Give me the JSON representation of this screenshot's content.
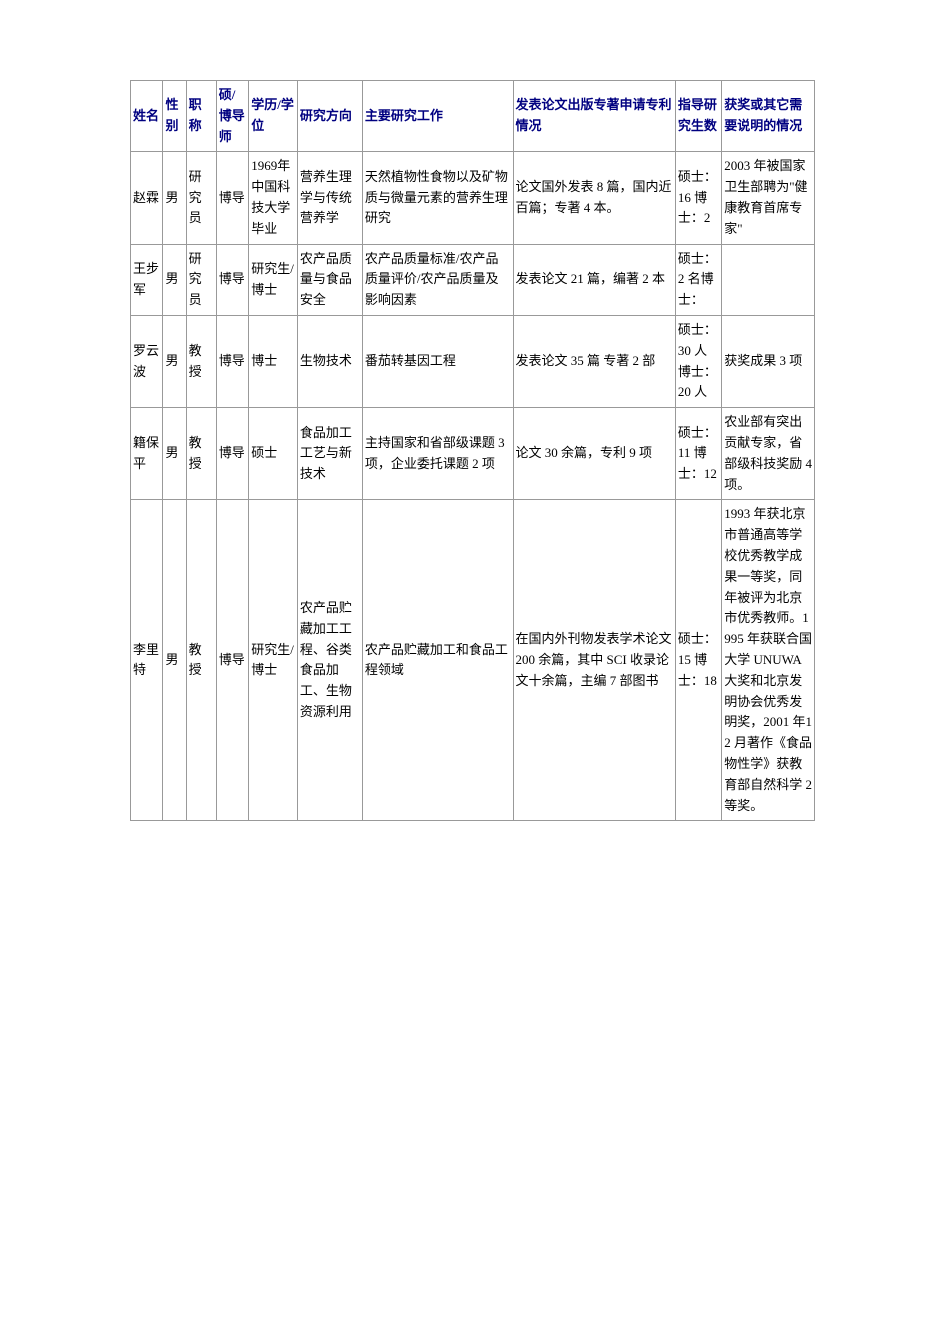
{
  "table": {
    "columns": [
      {
        "key": "name",
        "label": "姓名"
      },
      {
        "key": "gender",
        "label": "性别"
      },
      {
        "key": "title",
        "label": "职称"
      },
      {
        "key": "advisor",
        "label": "硕/博导师"
      },
      {
        "key": "education",
        "label": "学历/学位"
      },
      {
        "key": "direction",
        "label": "研究方向"
      },
      {
        "key": "work",
        "label": "主要研究工作"
      },
      {
        "key": "publications",
        "label": "发表论文出版专著申请专利情况"
      },
      {
        "key": "students",
        "label": "指导研究生数"
      },
      {
        "key": "awards",
        "label": "获奖或其它需要说明的情况"
      }
    ],
    "rows": [
      {
        "name": "赵霖",
        "gender": "男",
        "title": "研究员",
        "advisor": "博导",
        "education": "1969年中国科技大学毕业",
        "direction": "营养生理学与传统营养学",
        "work": "天然植物性食物以及矿物质与微量元素的营养生理研究",
        "publications": "论文国外发表 8 篇，国内近百篇；专著 4 本。",
        "students": "硕士：16 博士：2",
        "awards": "2003 年被国家卫生部聘为\"健康教育首席专家\""
      },
      {
        "name": "王步军",
        "gender": "男",
        "title": "研究员",
        "advisor": "博导",
        "education": "研究生/博士",
        "direction": "农产品质量与食品安全",
        "work": "农产品质量标准/农产品质量评价/农产品质量及影响因素",
        "publications": "发表论文 21 篇，编著 2 本",
        "students": "硕士：2 名博士：",
        "awards": ""
      },
      {
        "name": "罗云波",
        "gender": "男",
        "title": "教授",
        "advisor": "博导",
        "education": "博士",
        "direction": "生物技术",
        "work": "番茄转基因工程",
        "publications": "发表论文 35 篇 专著 2 部",
        "students": "硕士：30 人博士：20 人",
        "awards": "获奖成果 3 项"
      },
      {
        "name": "籍保平",
        "gender": "男",
        "title": "教授",
        "advisor": "博导",
        "education": "硕士",
        "direction": "食品加工工艺与新技术",
        "work": "主持国家和省部级课题 3 项，企业委托课题 2 项",
        "publications": "论文 30 余篇，专利 9 项",
        "students": "硕士：11 博士：12",
        "awards": "农业部有突出贡献专家，省部级科技奖励 4 项。"
      },
      {
        "name": "李里特",
        "gender": "男",
        "title": "教授",
        "advisor": "博导",
        "education": "研究生/博士",
        "direction": "农产品贮藏加工工程、谷类食品加工、生物资源利用",
        "work": "农产品贮藏加工和食品工程领域",
        "publications": "在国内外刊物发表学术论文 200 余篇，其中 SCI 收录论文十余篇，主编 7 部图书",
        "students": "硕士：15 博士：18",
        "awards": "1993 年获北京市普通高等学校优秀教学成果一等奖，同年被评为北京市优秀教师。1995 年获联合国大学 UNUWA 大奖和北京发明协会优秀发明奖，2001 年12 月著作《食品物性学》获教育部自然科学 2 等奖。"
      }
    ],
    "style": {
      "header_color": "#000080",
      "border_color": "#999999",
      "background_color": "#ffffff",
      "font_family": "SimSun",
      "font_size": 13,
      "line_height": 1.6
    }
  }
}
